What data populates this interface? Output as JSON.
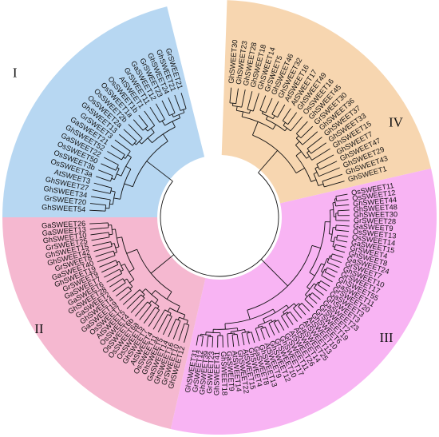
{
  "tree": {
    "clades": [
      {
        "numeral": "I",
        "color": "#b7d7f2",
        "leaves": [
          "GhSWEET54",
          "GrSWEET20",
          "GhSWEET34",
          "GhSWEET27",
          "AtSWEET3",
          "OsSWEET3a",
          "OsSWEET3b",
          "OsSWEET50",
          "GaSWEET22",
          "GhSWEET52",
          "GaSWEET21",
          "GrSWEET3",
          "GhSWEET13",
          "OsSWEET2a",
          "OsSWEET2b",
          "OsSWEET1a",
          "OsSWEET1b",
          "AtSWEET1",
          "GrSWEET11",
          "GaSWEET12",
          "GrSWEET23",
          "GhSWEET24",
          "GhSWEET21",
          "GrSWEET21"
        ]
      },
      {
        "numeral": "IV",
        "color": "#f7d6b0",
        "leaves": [
          "GhSWEET30",
          "GhSWEET23",
          "GhSWEET28",
          "GhSWEET18",
          "GhSWEET14",
          "GrSWEET5",
          "GhSWEET46",
          "GhSWEET32",
          "AtSWEET16",
          "AtSWEET17",
          "GhSWEET49",
          "OsSWEET16",
          "GhSWEET45",
          "GrSWEET30",
          "GhSWEET36",
          "GhSWEET37",
          "GhSWEET33",
          "GhSWEET15",
          "GhSWEET7",
          "GhSWEET47",
          "GhSWEET29",
          "GhSWEET43",
          "GhSWEET1"
        ]
      },
      {
        "numeral": "III",
        "color": "#f8b4f3",
        "leaves": [
          "OsSWEET11",
          "OsSWEET12",
          "GhSWEET44",
          "GhSWEET48",
          "GhSWEET30",
          "GrSWEET28",
          "GaSWEET9",
          "OsSWEET13",
          "OsSWEET14",
          "GaSWEET15",
          "GrSWEET4",
          "GhSWEET8",
          "GaSWEET24",
          "GrSWEET7",
          "GhSWEET10",
          "GrSWEET17",
          "GhSWEET55",
          "GaSWEET11",
          "GrSWEET20",
          "GaSWEET3",
          "GhSWEET3",
          "GaSWEET23",
          "GrSWEET2",
          "GrSWEET19",
          "GhSWEET6",
          "AtSWEET10",
          "AtSWEET13",
          "GaSWEET25",
          "AtSWEET14",
          "AtSWEET26",
          "GrSWEET11",
          "GhSWEET17",
          "GrSWEET10",
          "GhSWEET12",
          "AtSWEET9",
          "GhSWEET13",
          "GaSWEET8",
          "GhSWEET4",
          "AtSWEET15",
          "GhSWEET22",
          "AtSWEET14",
          "GaSWEET9",
          "GhSWEET18",
          "GhSWEET41",
          "GrSWEET23",
          "GhSWEET39",
          "GrSWEET12",
          "GhSWEET31"
        ]
      },
      {
        "numeral": "II",
        "color": "#f5b8d0",
        "leaves": [
          "GhSWEET12",
          "GrSWEET10",
          "GhSWEET16",
          "GaSWEET14",
          "GhSWEET5",
          "OsSWEET11",
          "AtSWEET4",
          "GhSWEET7",
          "OsSWEET5",
          "OsSWEET6a",
          "OsSWEET6b",
          "OsSWEET4",
          "AtSWEET5",
          "OsSWEET7",
          "GaSWEET19",
          "GhSWEET4",
          "GaSWEET2",
          "GhSWEET28",
          "GaSWEET6",
          "GaSWEET7",
          "GrSWEET9",
          "GhSWEET19",
          "GaSWEET40",
          "GrSWEET8",
          "GhSWEET42",
          "GhSWEET15",
          "GrSWEET25",
          "GhSWEET10",
          "GaSWEET13",
          "GaSWEET26"
        ]
      }
    ]
  }
}
